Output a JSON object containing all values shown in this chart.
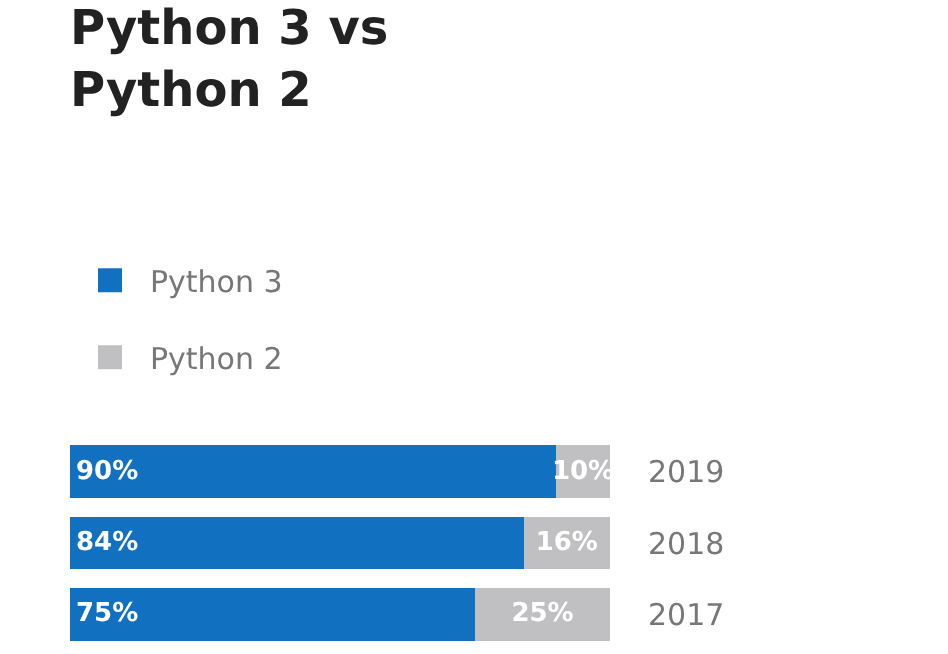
{
  "chart_data": {
    "type": "bar",
    "title": "Python 3 vs Python 2",
    "orientation": "horizontal",
    "stacked": true,
    "categories": [
      "2019",
      "2018",
      "2017"
    ],
    "series": [
      {
        "name": "Python 3",
        "color": "#1170c0",
        "values": [
          90,
          84,
          75
        ],
        "value_labels": [
          "90%",
          "84%",
          "75%"
        ]
      },
      {
        "name": "Python 2",
        "color": "#c0c0c2",
        "values": [
          10,
          16,
          25
        ],
        "value_labels": [
          "10%",
          "16%",
          "25%"
        ]
      }
    ],
    "xlim": [
      0,
      100
    ],
    "tick_labels": "y",
    "legend": "top left"
  }
}
